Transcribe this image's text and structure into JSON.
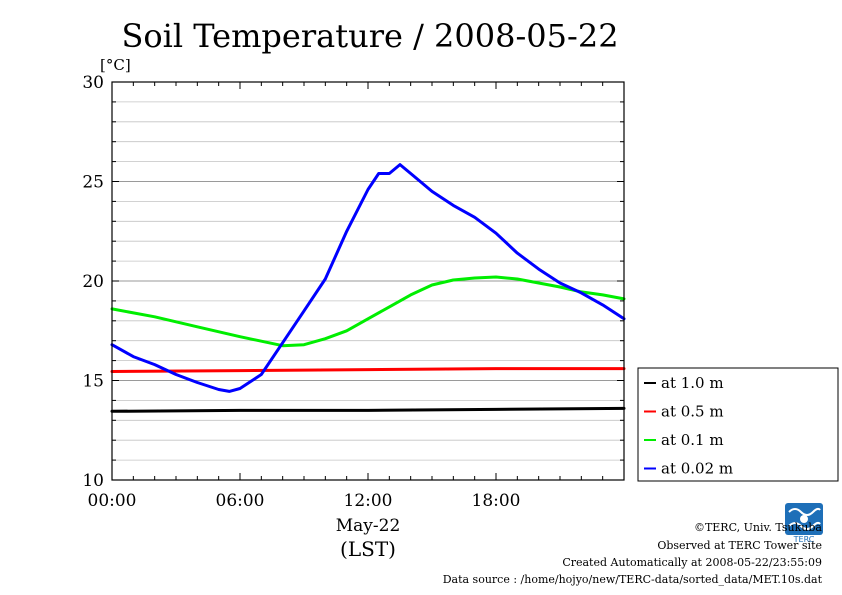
{
  "chart_data": {
    "type": "line",
    "title": "Soil Temperature / 2008-05-22",
    "ylabel": "[°C]",
    "xlabel_date": "May-22",
    "xlabel_tz": "(LST)",
    "x_range_hours": [
      0,
      24
    ],
    "y_range": [
      10,
      30
    ],
    "x_tick_labels": [
      "00:00",
      "06:00",
      "12:00",
      "18:00"
    ],
    "y_tick_labels": [
      "10",
      "15",
      "20",
      "25",
      "30"
    ],
    "grid": true,
    "legend_position": "right",
    "series": [
      {
        "name": "at 1.0 m",
        "color": "#000000",
        "points": [
          [
            0,
            13.45
          ],
          [
            6,
            13.5
          ],
          [
            12,
            13.5
          ],
          [
            18,
            13.55
          ],
          [
            24,
            13.6
          ]
        ]
      },
      {
        "name": "at 0.5 m",
        "color": "#ff0000",
        "points": [
          [
            0,
            15.45
          ],
          [
            6,
            15.5
          ],
          [
            12,
            15.55
          ],
          [
            18,
            15.6
          ],
          [
            24,
            15.6
          ]
        ]
      },
      {
        "name": "at 0.1 m",
        "color": "#00ee00",
        "points": [
          [
            0,
            18.6
          ],
          [
            2,
            18.2
          ],
          [
            4,
            17.7
          ],
          [
            6,
            17.2
          ],
          [
            8,
            16.75
          ],
          [
            9,
            16.8
          ],
          [
            10,
            17.1
          ],
          [
            11,
            17.5
          ],
          [
            12,
            18.1
          ],
          [
            13,
            18.7
          ],
          [
            14,
            19.3
          ],
          [
            15,
            19.8
          ],
          [
            16,
            20.05
          ],
          [
            17,
            20.15
          ],
          [
            18,
            20.2
          ],
          [
            19,
            20.1
          ],
          [
            20,
            19.9
          ],
          [
            21,
            19.7
          ],
          [
            22,
            19.45
          ],
          [
            23,
            19.3
          ],
          [
            24,
            19.1
          ]
        ]
      },
      {
        "name": "at 0.02 m",
        "color": "#0000ff",
        "points": [
          [
            0,
            16.8
          ],
          [
            1,
            16.2
          ],
          [
            2,
            15.8
          ],
          [
            3,
            15.3
          ],
          [
            4,
            14.9
          ],
          [
            5,
            14.55
          ],
          [
            5.5,
            14.45
          ],
          [
            6,
            14.6
          ],
          [
            7,
            15.3
          ],
          [
            8,
            16.9
          ],
          [
            9,
            18.5
          ],
          [
            10,
            20.1
          ],
          [
            11,
            22.5
          ],
          [
            12,
            24.6
          ],
          [
            12.5,
            25.4
          ],
          [
            13,
            25.4
          ],
          [
            13.5,
            25.85
          ],
          [
            14,
            25.4
          ],
          [
            15,
            24.5
          ],
          [
            16,
            23.8
          ],
          [
            17,
            23.2
          ],
          [
            18,
            22.4
          ],
          [
            19,
            21.4
          ],
          [
            20,
            20.6
          ],
          [
            21,
            19.9
          ],
          [
            22,
            19.4
          ],
          [
            23,
            18.8
          ],
          [
            24,
            18.1
          ]
        ]
      }
    ]
  },
  "footer": {
    "copyright": "©TERC, Univ. Tsukuba",
    "observed": "Observed at TERC Tower site",
    "created": "Created Automatically at 2008-05-22/23:55:09",
    "source": "Data source : /home/hojyo/new/TERC-data/sorted_data/MET.10s.dat",
    "logo_text": "TERC"
  }
}
